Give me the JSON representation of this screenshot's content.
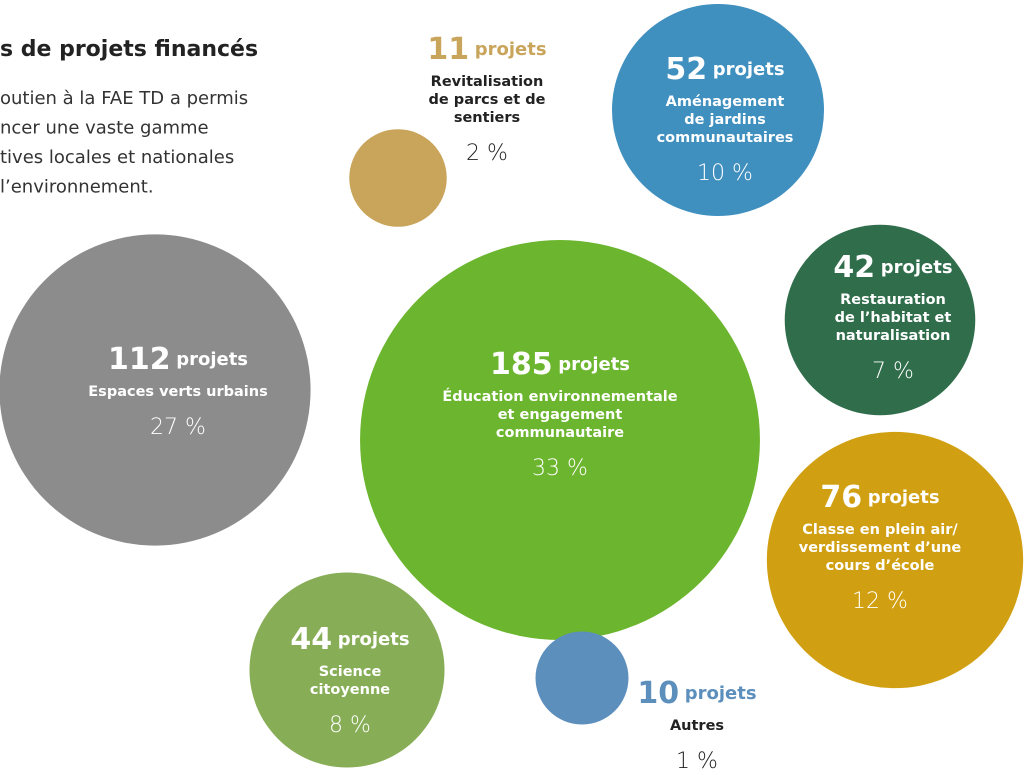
{
  "chart_data": {
    "type": "bubble",
    "title": "s de projets financés",
    "subtitle": [
      "outien à la FAE TD a permis",
      "ncer une vaste gamme",
      "tives locales et nationales",
      "l’environnement."
    ],
    "unit": "projets",
    "categories": [
      [
        "Éducation environnementale",
        "et engagement",
        "communautaire"
      ],
      [
        "Espaces verts urbains"
      ],
      [
        "Classe en plein air/",
        "verdissement d’une",
        "cours d’école"
      ],
      [
        "Aménagement",
        "de jardins",
        "communautaires"
      ],
      [
        "Science",
        "citoyenne"
      ],
      [
        "Restauration",
        "de l’habitat et",
        "naturalisation"
      ],
      [
        "Revitalisation",
        "de parcs et de",
        "sentiers"
      ],
      [
        "Autres"
      ]
    ],
    "values": [
      185,
      112,
      76,
      52,
      44,
      42,
      11,
      10
    ],
    "percents": [
      "33 %",
      "27 %",
      "12 %",
      "10 %",
      "8 %",
      "7 %",
      "2 %",
      "1 %"
    ],
    "colors": [
      "#6cb52e",
      "#8c8c8c",
      "#d1a012",
      "#3f8fbf",
      "#87ae57",
      "#2f6d4b",
      "#c9a45b",
      "#5d8fbd"
    ]
  }
}
